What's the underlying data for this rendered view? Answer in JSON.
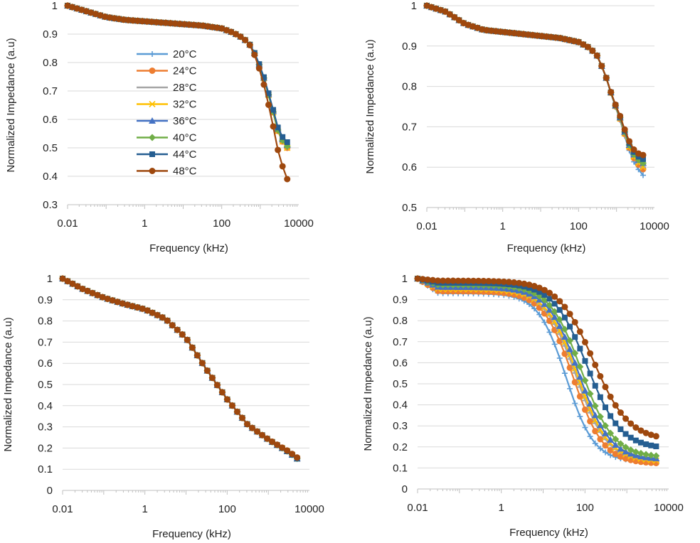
{
  "series_meta": [
    {
      "name": "20°C",
      "color": "#5b9bd5",
      "marker": "plus"
    },
    {
      "name": "24°C",
      "color": "#ed7d31",
      "marker": "circle"
    },
    {
      "name": "28°C",
      "color": "#a5a5a5",
      "marker": "dash"
    },
    {
      "name": "32°C",
      "color": "#ffc000",
      "marker": "x"
    },
    {
      "name": "36°C",
      "color": "#4472c4",
      "marker": "triangle"
    },
    {
      "name": "40°C",
      "color": "#70ad47",
      "marker": "diamond"
    },
    {
      "name": "44°C",
      "color": "#255e91",
      "marker": "square"
    },
    {
      "name": "48°C",
      "color": "#9e480e",
      "marker": "circle"
    }
  ],
  "chart_data": [
    {
      "type": "line",
      "xscale": "log",
      "xlim": [
        0.01,
        10000
      ],
      "xticks": [
        "0.01",
        "1",
        "100",
        "10000"
      ],
      "ylim": [
        0.3,
        1.0
      ],
      "yticks": [
        "0.3",
        "0.4",
        "0.5",
        "0.6",
        "0.7",
        "0.8",
        "0.9",
        "1"
      ],
      "xlabel": "Frequency (kHz)",
      "ylabel": "Normalized Impedance (a.u)",
      "legend": "inside-left",
      "curve": {
        "kind": "piecewise",
        "pts": [
          [
            -2,
            1.0
          ],
          [
            -1.5,
            0.98
          ],
          [
            -1,
            0.96
          ],
          [
            -0.5,
            0.95
          ],
          [
            0,
            0.945
          ],
          [
            0.5,
            0.94
          ],
          [
            1,
            0.935
          ],
          [
            1.5,
            0.93
          ],
          [
            2,
            0.92
          ],
          [
            2.3,
            0.905
          ],
          [
            2.5,
            0.89
          ],
          [
            2.7,
            0.87
          ],
          [
            2.9,
            0.82
          ],
          [
            3.1,
            0.74
          ],
          [
            3.3,
            0.64
          ],
          [
            3.5,
            0.53
          ],
          [
            3.7,
            0.49
          ]
        ]
      },
      "series": [
        {
          "name": "20°C",
          "end": 0.5
        },
        {
          "name": "24°C",
          "end": 0.5
        },
        {
          "name": "28°C",
          "end": 0.51
        },
        {
          "name": "32°C",
          "end": 0.5
        },
        {
          "name": "36°C",
          "end": 0.51
        },
        {
          "name": "40°C",
          "end": 0.505
        },
        {
          "name": "44°C",
          "end": 0.52
        },
        {
          "name": "48°C",
          "end": 0.39
        }
      ]
    },
    {
      "type": "line",
      "xscale": "log",
      "xlim": [
        0.01,
        10000
      ],
      "xticks": [
        "0.01",
        "1",
        "100",
        "10000"
      ],
      "ylim": [
        0.5,
        1.0
      ],
      "yticks": [
        "0.5",
        "0.6",
        "0.7",
        "0.8",
        "0.9",
        "1"
      ],
      "xlabel": "Frequency (kHz)",
      "ylabel": "Normalized Impedance (a.u)",
      "curve": {
        "kind": "piecewise",
        "pts": [
          [
            -2,
            1.0
          ],
          [
            -1.5,
            0.985
          ],
          [
            -1,
            0.955
          ],
          [
            -0.5,
            0.94
          ],
          [
            0,
            0.935
          ],
          [
            0.5,
            0.93
          ],
          [
            1,
            0.925
          ],
          [
            1.5,
            0.92
          ],
          [
            2,
            0.91
          ],
          [
            2.3,
            0.895
          ],
          [
            2.5,
            0.875
          ],
          [
            2.7,
            0.83
          ],
          [
            2.9,
            0.77
          ],
          [
            3.1,
            0.72
          ],
          [
            3.3,
            0.66
          ],
          [
            3.5,
            0.62
          ],
          [
            3.7,
            0.605
          ]
        ]
      },
      "series": [
        {
          "name": "20°C",
          "end": 0.58
        },
        {
          "name": "24°C",
          "end": 0.595
        },
        {
          "name": "28°C",
          "end": 0.6
        },
        {
          "name": "32°C",
          "end": 0.6
        },
        {
          "name": "36°C",
          "end": 0.61
        },
        {
          "name": "40°C",
          "end": 0.61
        },
        {
          "name": "44°C",
          "end": 0.62
        },
        {
          "name": "48°C",
          "end": 0.63
        }
      ]
    },
    {
      "type": "line",
      "xscale": "log",
      "xlim": [
        0.01,
        10000
      ],
      "xticks": [
        "0.01",
        "1",
        "100",
        "10000"
      ],
      "ylim": [
        0,
        1.0
      ],
      "yticks": [
        "0",
        "0.1",
        "0.2",
        "0.3",
        "0.4",
        "0.5",
        "0.6",
        "0.7",
        "0.8",
        "0.9",
        "1"
      ],
      "xlabel": "Frequency (kHz)",
      "ylabel": "Normalized Impedance (a.u)",
      "curve": {
        "kind": "piecewise",
        "pts": [
          [
            -2,
            1.0
          ],
          [
            -1.5,
            0.95
          ],
          [
            -1,
            0.91
          ],
          [
            -0.5,
            0.88
          ],
          [
            0,
            0.855
          ],
          [
            0.5,
            0.81
          ],
          [
            1,
            0.72
          ],
          [
            1.5,
            0.57
          ],
          [
            2,
            0.43
          ],
          [
            2.5,
            0.31
          ],
          [
            3,
            0.24
          ],
          [
            3.5,
            0.18
          ],
          [
            3.7,
            0.15
          ]
        ]
      },
      "series": [
        {
          "name": "20°C",
          "end": 0.15
        },
        {
          "name": "24°C",
          "end": 0.155
        },
        {
          "name": "28°C",
          "end": 0.15
        },
        {
          "name": "32°C",
          "end": 0.15
        },
        {
          "name": "36°C",
          "end": 0.15
        },
        {
          "name": "40°C",
          "end": 0.15
        },
        {
          "name": "44°C",
          "end": 0.15
        },
        {
          "name": "48°C",
          "end": 0.155
        }
      ]
    },
    {
      "type": "line",
      "xscale": "log",
      "xlim": [
        0.01,
        10000
      ],
      "xticks": [
        "0.01",
        "1",
        "100",
        "10000"
      ],
      "ylim": [
        0,
        1.0
      ],
      "yticks": [
        "0",
        "0.1",
        "0.2",
        "0.3",
        "0.4",
        "0.5",
        "0.6",
        "0.7",
        "0.8",
        "0.9",
        "1"
      ],
      "xlabel": "Frequency (kHz)",
      "ylabel": "Normalized Impedance (a.u)",
      "curve": {
        "kind": "sigmoid"
      },
      "series": [
        {
          "name": "20°C",
          "plateau": 0.93,
          "center": 1.55,
          "width": 0.33,
          "end": 0.13
        },
        {
          "name": "24°C",
          "plateau": 0.94,
          "center": 1.72,
          "width": 0.36,
          "end": 0.12
        },
        {
          "name": "28°C",
          "plateau": 0.95,
          "center": 1.78,
          "width": 0.37,
          "end": 0.13
        },
        {
          "name": "32°C",
          "plateau": 0.95,
          "center": 1.82,
          "width": 0.37,
          "end": 0.13
        },
        {
          "name": "36°C",
          "plateau": 0.96,
          "center": 1.85,
          "width": 0.37,
          "end": 0.14
        },
        {
          "name": "40°C",
          "plateau": 0.97,
          "center": 1.92,
          "width": 0.38,
          "end": 0.15
        },
        {
          "name": "44°C",
          "plateau": 0.98,
          "center": 2.05,
          "width": 0.4,
          "end": 0.19
        },
        {
          "name": "48°C",
          "plateau": 0.99,
          "center": 2.2,
          "width": 0.42,
          "end": 0.23
        }
      ]
    }
  ]
}
